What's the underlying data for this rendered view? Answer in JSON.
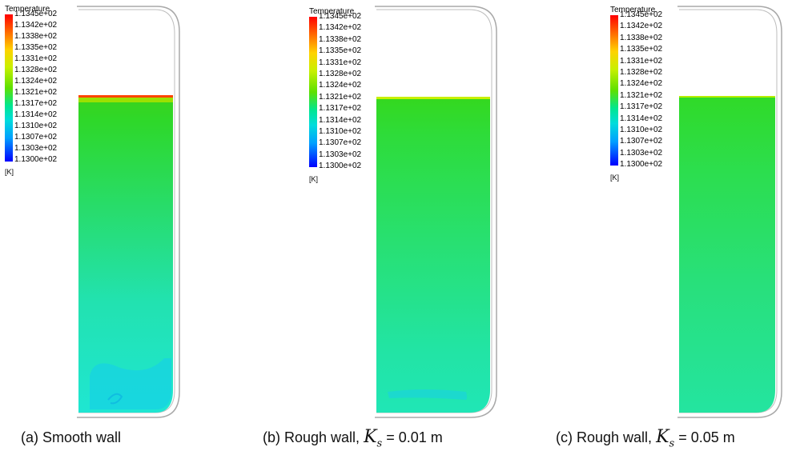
{
  "legend": {
    "title": "Temperature",
    "unit": "[K]",
    "ticks_a": [
      "1.1345e+02",
      "1.1342e+02",
      "1.1338e+02",
      "1.1335e+02",
      "1.1331e+02",
      "1.1328e+02",
      "1.1324e+02",
      "1.1321e+02",
      "1.1317e+02",
      "1.1314e+02",
      "1.1310e+02",
      "1.1307e+02",
      "1.1303e+02",
      "1.1300e+02"
    ],
    "ticks": [
      "1.1345e+02",
      "1.1342e+02",
      "1.1338e+02",
      "1.1335e+02",
      "1.1331e+02",
      "1.1328e+02",
      "1.1324e+02",
      "1.1321e+02",
      "1.1317e+02",
      "1.1314e+02",
      "1.1310e+02",
      "1.1307e+02",
      "1.1303e+02",
      "1.1300e+02"
    ]
  },
  "captions": {
    "a": "(a) Smooth wall",
    "b_prefix": "(b) Rough wall,",
    "b_value": "= 0.01 m",
    "c_prefix": "(c) Rough wall,",
    "c_value": "= 0.05 m",
    "ks_symbol": "K",
    "ks_subscript": "s"
  },
  "colors": {
    "liquid_top": "#34d61c",
    "liquid_bottom": "#22e6c0",
    "hot_band": "#ff3000",
    "wall": "#9a9a9a"
  }
}
